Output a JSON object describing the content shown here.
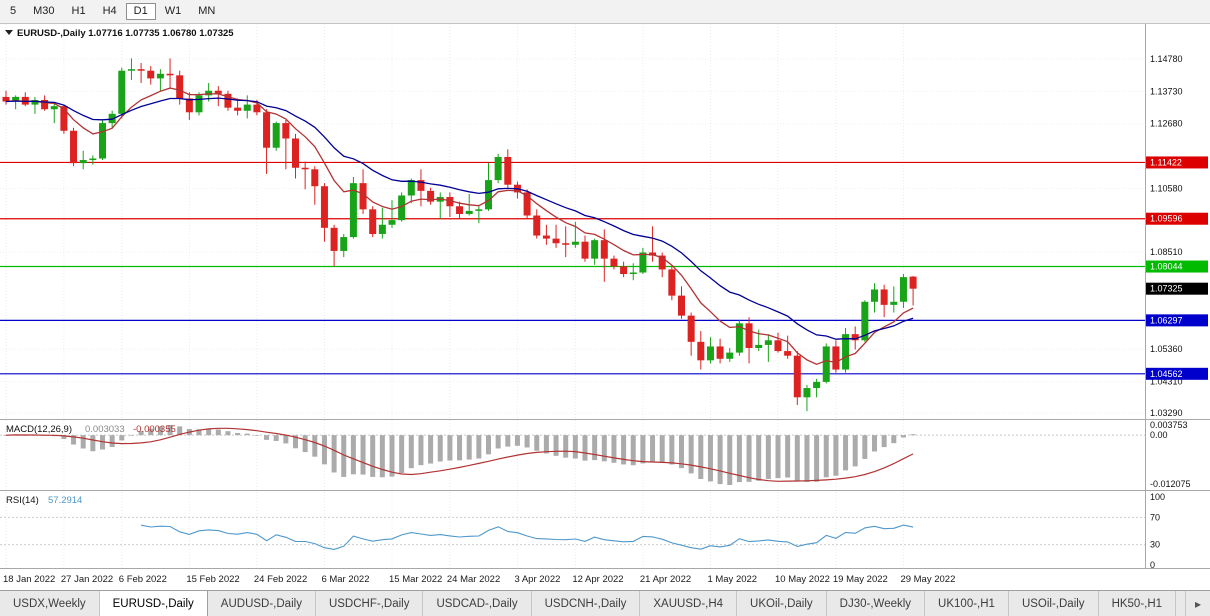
{
  "toolbar": {
    "timeframes": [
      {
        "label": "5",
        "active": false
      },
      {
        "label": "M30",
        "active": false
      },
      {
        "label": "H1",
        "active": false
      },
      {
        "label": "H4",
        "active": false
      },
      {
        "label": "D1",
        "active": true
      },
      {
        "label": "W1",
        "active": false
      },
      {
        "label": "MN",
        "active": false
      }
    ]
  },
  "chart_header": {
    "symbol": "EURUSD-,Daily",
    "open": "1.07716",
    "high": "1.07735",
    "low": "1.06780",
    "close": "1.07325"
  },
  "chart_data": {
    "type": "candlestick",
    "symbol": "EURUSD",
    "timeframe": "Daily",
    "ylim": [
      1.0329,
      1.1478
    ],
    "candles": [
      [
        1.1355,
        1.1375,
        1.133,
        1.134
      ],
      [
        1.134,
        1.136,
        1.1315,
        1.1355
      ],
      [
        1.1355,
        1.137,
        1.1325,
        1.133
      ],
      [
        1.133,
        1.1355,
        1.13,
        1.1345
      ],
      [
        1.1345,
        1.136,
        1.131,
        1.1315
      ],
      [
        1.1315,
        1.1335,
        1.127,
        1.1325
      ],
      [
        1.1325,
        1.133,
        1.1235,
        1.1245
      ],
      [
        1.1245,
        1.1255,
        1.113,
        1.114
      ],
      [
        1.114,
        1.118,
        1.112,
        1.115
      ],
      [
        1.115,
        1.1165,
        1.1135,
        1.1155
      ],
      [
        1.1155,
        1.128,
        1.115,
        1.127
      ],
      [
        1.127,
        1.131,
        1.1255,
        1.13
      ],
      [
        1.13,
        1.145,
        1.1285,
        1.144
      ],
      [
        1.144,
        1.148,
        1.141,
        1.1445
      ],
      [
        1.1445,
        1.1465,
        1.14,
        1.144
      ],
      [
        1.144,
        1.1455,
        1.1395,
        1.1415
      ],
      [
        1.1415,
        1.1445,
        1.1375,
        1.143
      ],
      [
        1.143,
        1.148,
        1.1385,
        1.1425
      ],
      [
        1.1425,
        1.144,
        1.133,
        1.135
      ],
      [
        1.135,
        1.137,
        1.128,
        1.1305
      ],
      [
        1.1305,
        1.137,
        1.1295,
        1.136
      ],
      [
        1.136,
        1.14,
        1.134,
        1.1375
      ],
      [
        1.1375,
        1.139,
        1.1325,
        1.1365
      ],
      [
        1.1365,
        1.1375,
        1.131,
        1.132
      ],
      [
        1.132,
        1.135,
        1.1295,
        1.131
      ],
      [
        1.131,
        1.136,
        1.1285,
        1.133
      ],
      [
        1.133,
        1.1345,
        1.1295,
        1.1305
      ],
      [
        1.1305,
        1.1315,
        1.1105,
        1.119
      ],
      [
        1.119,
        1.1275,
        1.118,
        1.127
      ],
      [
        1.127,
        1.128,
        1.112,
        1.122
      ],
      [
        1.122,
        1.1235,
        1.109,
        1.1125
      ],
      [
        1.1125,
        1.1145,
        1.1055,
        1.112
      ],
      [
        1.112,
        1.113,
        1.1005,
        1.1065
      ],
      [
        1.1065,
        1.1075,
        1.0885,
        1.093
      ],
      [
        1.093,
        1.094,
        1.0805,
        1.0855
      ],
      [
        1.0855,
        1.091,
        1.0835,
        1.09
      ],
      [
        1.09,
        1.1095,
        1.0895,
        1.1075
      ],
      [
        1.1075,
        1.112,
        1.0975,
        1.099
      ],
      [
        1.099,
        1.1,
        1.09,
        1.091
      ],
      [
        1.091,
        1.0995,
        1.0895,
        1.094
      ],
      [
        1.094,
        1.102,
        1.093,
        1.0955
      ],
      [
        1.0955,
        1.1045,
        1.095,
        1.1035
      ],
      [
        1.1035,
        1.109,
        1.101,
        1.1085
      ],
      [
        1.1085,
        1.112,
        1.1,
        1.105
      ],
      [
        1.105,
        1.106,
        1.1005,
        1.1015
      ],
      [
        1.1015,
        1.1045,
        1.096,
        1.103
      ],
      [
        1.103,
        1.1045,
        1.0965,
        1.1
      ],
      [
        1.1,
        1.1015,
        1.096,
        1.0975
      ],
      [
        1.0975,
        1.104,
        1.097,
        1.0985
      ],
      [
        1.0985,
        1.1,
        1.0945,
        1.099
      ],
      [
        1.099,
        1.114,
        1.0985,
        1.1085
      ],
      [
        1.1085,
        1.117,
        1.1075,
        1.116
      ],
      [
        1.116,
        1.1185,
        1.106,
        1.107
      ],
      [
        1.107,
        1.108,
        1.1025,
        1.1045
      ],
      [
        1.1045,
        1.1055,
        1.096,
        1.097
      ],
      [
        1.097,
        1.099,
        1.0895,
        1.0905
      ],
      [
        1.0905,
        1.094,
        1.0875,
        1.0895
      ],
      [
        1.0895,
        1.094,
        1.0865,
        1.088
      ],
      [
        1.088,
        1.0935,
        1.0835,
        1.0875
      ],
      [
        1.0875,
        1.095,
        1.0865,
        1.0885
      ],
      [
        1.0885,
        1.0905,
        1.082,
        1.083
      ],
      [
        1.083,
        1.0895,
        1.081,
        1.089
      ],
      [
        1.089,
        1.0925,
        1.0755,
        1.083
      ],
      [
        1.083,
        1.084,
        1.0795,
        1.0805
      ],
      [
        1.0805,
        1.082,
        1.077,
        1.078
      ],
      [
        1.078,
        1.0815,
        1.076,
        1.0785
      ],
      [
        1.0785,
        1.0865,
        1.078,
        1.085
      ],
      [
        1.085,
        1.0935,
        1.082,
        1.084
      ],
      [
        1.084,
        1.085,
        1.077,
        1.0795
      ],
      [
        1.0795,
        1.0805,
        1.0695,
        1.071
      ],
      [
        1.071,
        1.074,
        1.0635,
        1.0645
      ],
      [
        1.0645,
        1.0655,
        1.0515,
        1.056
      ],
      [
        1.056,
        1.0595,
        1.047,
        1.05
      ],
      [
        1.05,
        1.0575,
        1.049,
        1.0545
      ],
      [
        1.0545,
        1.057,
        1.049,
        1.0505
      ],
      [
        1.0505,
        1.054,
        1.0495,
        1.0525
      ],
      [
        1.0525,
        1.063,
        1.0515,
        1.062
      ],
      [
        1.062,
        1.064,
        1.049,
        1.054
      ],
      [
        1.054,
        1.06,
        1.053,
        1.055
      ],
      [
        1.055,
        1.0585,
        1.0495,
        1.0565
      ],
      [
        1.0565,
        1.059,
        1.0525,
        1.053
      ],
      [
        1.053,
        1.058,
        1.0505,
        1.0515
      ],
      [
        1.0515,
        1.053,
        1.0355,
        1.038
      ],
      [
        1.038,
        1.042,
        1.0335,
        1.041
      ],
      [
        1.041,
        1.044,
        1.038,
        1.043
      ],
      [
        1.043,
        1.0555,
        1.0425,
        1.0545
      ],
      [
        1.0545,
        1.0565,
        1.046,
        1.047
      ],
      [
        1.047,
        1.0605,
        1.046,
        1.0585
      ],
      [
        1.0585,
        1.061,
        1.0535,
        1.0565
      ],
      [
        1.0565,
        1.0695,
        1.056,
        1.069
      ],
      [
        1.069,
        1.075,
        1.0655,
        1.073
      ],
      [
        1.073,
        1.0745,
        1.064,
        1.068
      ],
      [
        1.068,
        1.074,
        1.0655,
        1.069
      ],
      [
        1.069,
        1.078,
        1.067,
        1.077
      ],
      [
        1.07716,
        1.07735,
        1.0678,
        1.07325
      ]
    ],
    "x_labels": [
      {
        "t": "18 Jan 2022",
        "i": 0
      },
      {
        "t": "27 Jan 2022",
        "i": 6
      },
      {
        "t": "6 Feb 2022",
        "i": 12
      },
      {
        "t": "15 Feb 2022",
        "i": 19
      },
      {
        "t": "24 Feb 2022",
        "i": 26
      },
      {
        "t": "6 Mar 2022",
        "i": 33
      },
      {
        "t": "15 Mar 2022",
        "i": 40
      },
      {
        "t": "24 Mar 2022",
        "i": 46
      },
      {
        "t": "3 Apr 2022",
        "i": 53
      },
      {
        "t": "12 Apr 2022",
        "i": 59
      },
      {
        "t": "21 Apr 2022",
        "i": 66
      },
      {
        "t": "1 May 2022",
        "i": 73
      },
      {
        "t": "10 May 2022",
        "i": 80
      },
      {
        "t": "19 May 2022",
        "i": 86
      },
      {
        "t": "29 May 2022",
        "i": 93
      }
    ],
    "price_ticks": [
      {
        "v": 1.1478,
        "t": "1.14780"
      },
      {
        "v": 1.1373,
        "t": "1.13730"
      },
      {
        "v": 1.1268,
        "t": "1.12680"
      },
      {
        "v": 1.1058,
        "t": "1.10580"
      },
      {
        "v": 1.0851,
        "t": "1.08510"
      },
      {
        "v": 1.0536,
        "t": "1.05360"
      },
      {
        "v": 1.0431,
        "t": "1.04310"
      },
      {
        "v": 1.0329,
        "t": "1.03290"
      }
    ],
    "h_lines": [
      {
        "v": 1.11422,
        "t": "1.11422",
        "color": "#dd0000",
        "kind": "resistance"
      },
      {
        "v": 1.09596,
        "t": "1.09596",
        "color": "#dd0000",
        "kind": "resistance"
      },
      {
        "v": 1.08044,
        "t": "1.08044",
        "color": "#00bb00",
        "kind": "level"
      },
      {
        "v": 1.06297,
        "t": "1.06297",
        "color": "#0000cc",
        "kind": "support"
      },
      {
        "v": 1.04562,
        "t": "1.04562",
        "color": "#0000cc",
        "kind": "support"
      }
    ],
    "current_price": {
      "v": 1.07325,
      "t": "1.07325",
      "color": "#000000"
    },
    "candle_colors": {
      "up": "#18a318",
      "down": "#dd2222"
    },
    "moving_averages": [
      {
        "period": 9,
        "color": "#b23333"
      },
      {
        "period": 20,
        "color": "#000096"
      }
    ],
    "macd": {
      "label": "MACD(12,26,9)",
      "value_main": "0.003033",
      "value_signal": "-0.000355",
      "fast": 12,
      "slow": 26,
      "signal": 9,
      "axis_top": "0.003753",
      "axis_zero": "0.00",
      "axis_bottom": "-0.012075",
      "hist_color": "#ababab",
      "signal_color": "#b23333"
    },
    "rsi": {
      "label": "RSI(14)",
      "value": "57.2914",
      "period": 14,
      "axis": [
        "100",
        "70",
        "30",
        "0"
      ],
      "levels": [
        70,
        30
      ],
      "color": "#4f98cc"
    }
  },
  "tabs": [
    {
      "label": "USDX,Weekly",
      "active": false
    },
    {
      "label": "EURUSD-,Daily",
      "active": true
    },
    {
      "label": "AUDUSD-,Daily",
      "active": false
    },
    {
      "label": "USDCHF-,Daily",
      "active": false
    },
    {
      "label": "USDCAD-,Daily",
      "active": false
    },
    {
      "label": "USDCNH-,Daily",
      "active": false
    },
    {
      "label": "XAUUSD-,H4",
      "active": false
    },
    {
      "label": "UKOil-,Daily",
      "active": false
    },
    {
      "label": "DJ30-,Weekly",
      "active": false
    },
    {
      "label": "UK100-,H1",
      "active": false
    },
    {
      "label": "USOil-,Daily",
      "active": false
    },
    {
      "label": "HK50-,H1",
      "active": false
    }
  ],
  "tabbar": {
    "scroll_right_icon": "▸"
  }
}
